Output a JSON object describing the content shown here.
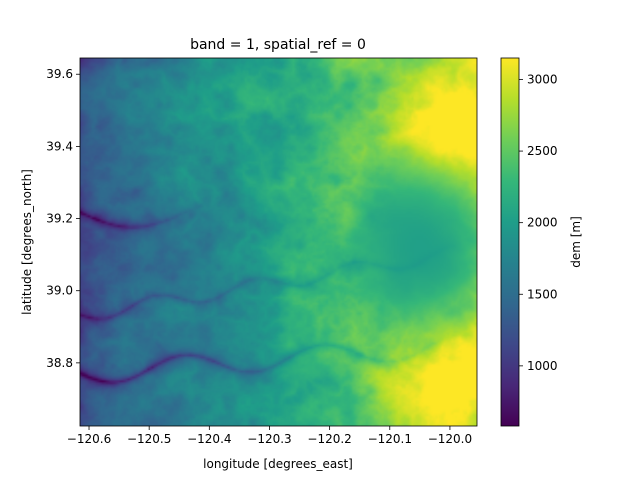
{
  "chart_data": {
    "type": "heatmap",
    "title": "band = 1, spatial_ref = 0",
    "xlabel": "longitude [degrees_east]",
    "ylabel": "latitude [degrees_north]",
    "xlim": [
      -120.615,
      -119.955
    ],
    "ylim": [
      38.625,
      39.645
    ],
    "x_ticks": [
      -120.6,
      -120.5,
      -120.4,
      -120.3,
      -120.2,
      -120.1,
      -120.0
    ],
    "x_tick_labels": [
      "−120.6",
      "−120.5",
      "−120.4",
      "−120.3",
      "−120.2",
      "−120.1",
      "−120.0"
    ],
    "y_ticks": [
      38.8,
      39.0,
      39.2,
      39.4,
      39.6
    ],
    "y_tick_labels": [
      "38.8",
      "39.0",
      "39.2",
      "39.4",
      "39.6"
    ],
    "colorbar": {
      "label": "dem [m]",
      "colormap": "viridis",
      "range": [
        580,
        3150
      ],
      "ticks": [
        1000,
        1500,
        2000,
        2500,
        3000
      ],
      "tick_labels": [
        "1000",
        "1500",
        "2000",
        "2500",
        "3000"
      ]
    },
    "grid": false,
    "colors": {
      "viridis_stops": [
        "#440154",
        "#482878",
        "#3e4989",
        "#31688e",
        "#26828e",
        "#1f9e89",
        "#35b779",
        "#6ece58",
        "#b5de2b",
        "#fde725"
      ]
    }
  }
}
